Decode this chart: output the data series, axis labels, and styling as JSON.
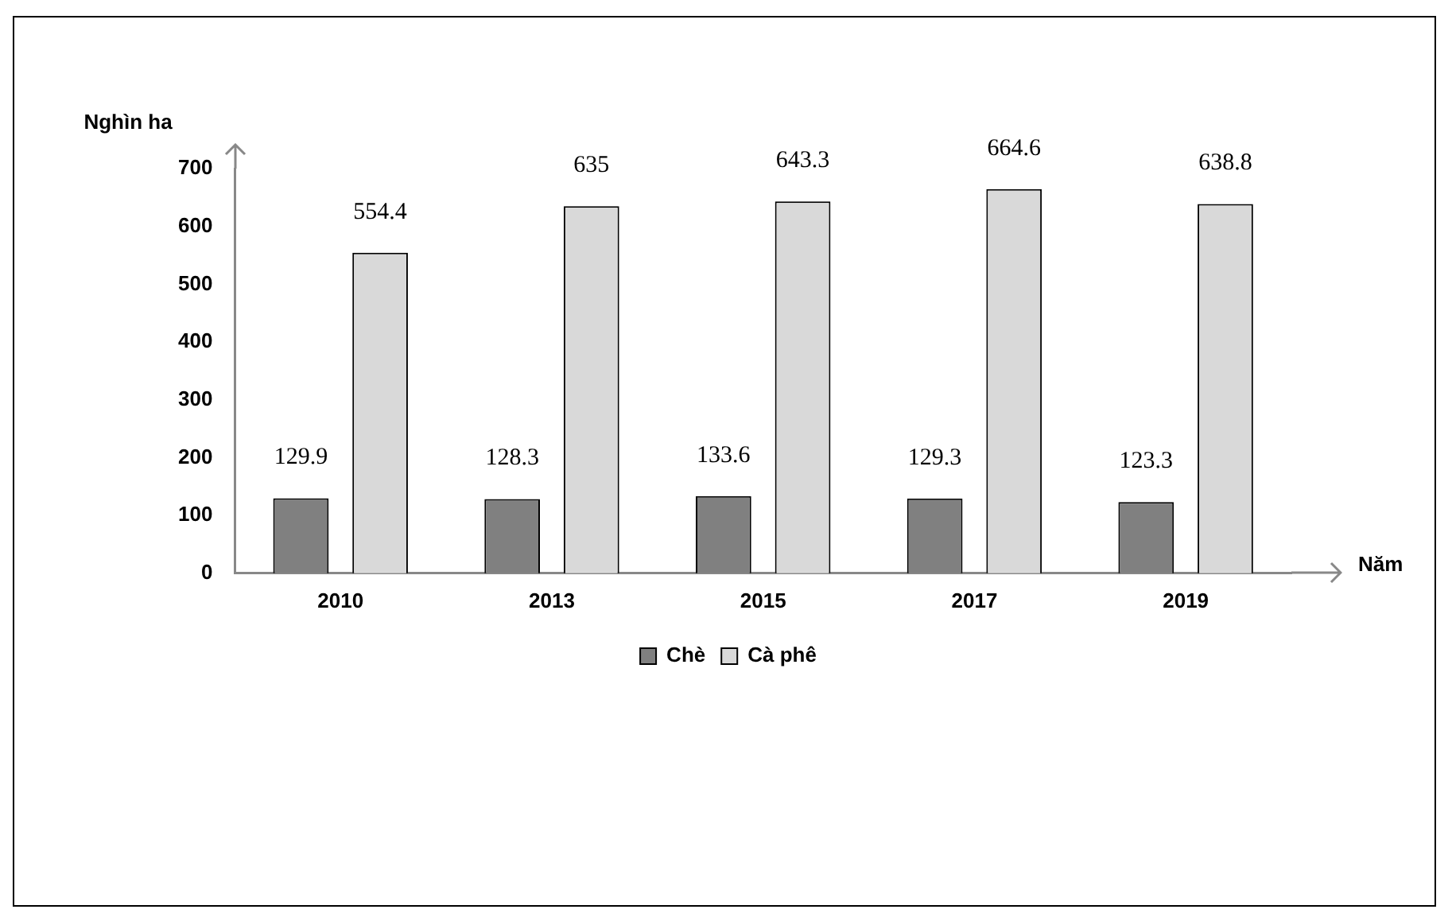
{
  "chart_data": {
    "type": "bar",
    "xlabel": "Năm",
    "ylabel": "Nghìn ha",
    "categories": [
      "2010",
      "2013",
      "2015",
      "2017",
      "2019"
    ],
    "series": [
      {
        "name": "Chè",
        "color": "#808080",
        "values": [
          129.9,
          128.3,
          133.6,
          129.3,
          123.3
        ]
      },
      {
        "name": "Cà phê",
        "color": "#d9d9d9",
        "values": [
          554.4,
          635,
          643.3,
          664.6,
          638.8
        ]
      }
    ],
    "ylim": [
      0,
      700
    ],
    "yticks": [
      0,
      100,
      200,
      300,
      400,
      500,
      600,
      700
    ],
    "data_labels": true,
    "legend": "bottom",
    "grid": false
  }
}
